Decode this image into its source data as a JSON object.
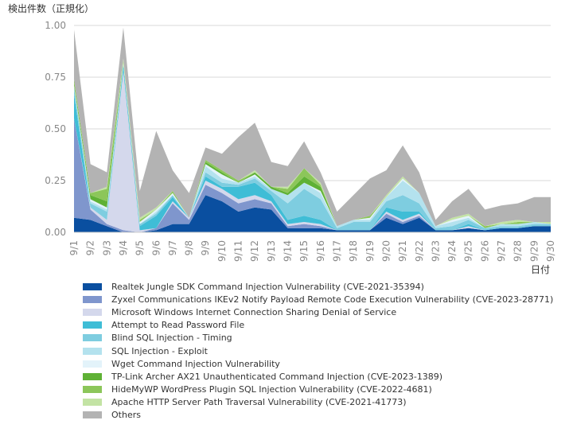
{
  "chart_data": {
    "type": "area",
    "stacked": true,
    "ylabel": "検出件数（正規化）",
    "xlabel": "日付",
    "ylim": [
      0,
      1.0
    ],
    "yticks": [
      "0.00",
      "0.25",
      "0.50",
      "0.75",
      "1.00"
    ],
    "grid": "horizontal",
    "legend_position": "bottom",
    "categories": [
      "9/1",
      "9/2",
      "9/3",
      "9/4",
      "9/5",
      "9/6",
      "9/7",
      "9/8",
      "9/9",
      "9/10",
      "9/11",
      "9/12",
      "9/13",
      "9/14",
      "9/15",
      "9/16",
      "9/17",
      "9/18",
      "9/19",
      "9/20",
      "9/21",
      "9/22",
      "9/23",
      "9/24",
      "9/25",
      "9/26",
      "9/27",
      "9/28",
      "9/29",
      "9/30"
    ],
    "series": [
      {
        "name": "Realtek Jungle SDK Command Injection Vulnerability (CVE-2021-35394)",
        "color": "#0a4fa0",
        "values": [
          0.07,
          0.06,
          0.03,
          0.0,
          0.0,
          0.01,
          0.04,
          0.04,
          0.18,
          0.15,
          0.1,
          0.12,
          0.11,
          0.02,
          0.02,
          0.02,
          0.01,
          0.01,
          0.01,
          0.07,
          0.04,
          0.07,
          0.01,
          0.01,
          0.02,
          0.01,
          0.02,
          0.02,
          0.03,
          0.03
        ]
      },
      {
        "name": "Zyxel Communications IKEv2 Notify Payload Remote Code Execution Vulnerability (CVE-2023-28771)",
        "color": "#7f96cd",
        "values": [
          0.48,
          0.05,
          0.01,
          0.01,
          0.0,
          0.01,
          0.1,
          0.02,
          0.05,
          0.04,
          0.04,
          0.04,
          0.03,
          0.01,
          0.02,
          0.01,
          0.0,
          0.0,
          0.0,
          0.02,
          0.01,
          0.01,
          0.0,
          0.0,
          0.0,
          0.0,
          0.0,
          0.0,
          0.0,
          0.0
        ]
      },
      {
        "name": "Microsoft Windows Internet Connection Sharing Denial of Service",
        "color": "#d4d8ec",
        "values": [
          0.0,
          0.01,
          0.02,
          0.77,
          0.01,
          0.0,
          0.01,
          0.01,
          0.02,
          0.02,
          0.02,
          0.02,
          0.01,
          0.01,
          0.01,
          0.01,
          0.0,
          0.0,
          0.0,
          0.01,
          0.01,
          0.01,
          0.0,
          0.0,
          0.01,
          0.0,
          0.0,
          0.0,
          0.0,
          0.0
        ]
      },
      {
        "name": "Attempt to Read Password File",
        "color": "#3fbdd6",
        "values": [
          0.12,
          0.0,
          0.0,
          0.03,
          0.02,
          0.06,
          0.02,
          0.0,
          0.02,
          0.01,
          0.06,
          0.06,
          0.03,
          0.02,
          0.03,
          0.02,
          0.0,
          0.0,
          0.0,
          0.02,
          0.04,
          0.01,
          0.0,
          0.0,
          0.01,
          0.0,
          0.0,
          0.0,
          0.0,
          0.0
        ]
      },
      {
        "name": "Blind SQL Injection - Timing",
        "color": "#7ecde0",
        "values": [
          0.03,
          0.02,
          0.04,
          0.0,
          0.01,
          0.01,
          0.01,
          0.0,
          0.02,
          0.02,
          0.01,
          0.02,
          0.02,
          0.08,
          0.13,
          0.1,
          0.01,
          0.04,
          0.04,
          0.03,
          0.08,
          0.04,
          0.01,
          0.02,
          0.02,
          0.01,
          0.01,
          0.01,
          0.01,
          0.01
        ]
      },
      {
        "name": "SQL Injection - Exploit",
        "color": "#b4e2ee",
        "values": [
          0.0,
          0.01,
          0.01,
          0.0,
          0.0,
          0.01,
          0.0,
          0.0,
          0.03,
          0.02,
          0.01,
          0.01,
          0.01,
          0.04,
          0.03,
          0.03,
          0.01,
          0.01,
          0.01,
          0.02,
          0.07,
          0.05,
          0.01,
          0.02,
          0.01,
          0.0,
          0.01,
          0.01,
          0.01,
          0.0
        ]
      },
      {
        "name": "Wget Command Injection Vulnerability",
        "color": "#e3f3fa",
        "values": [
          0.01,
          0.01,
          0.01,
          0.01,
          0.01,
          0.01,
          0.01,
          0.0,
          0.01,
          0.02,
          0.0,
          0.01,
          0.0,
          0.0,
          0.0,
          0.01,
          0.0,
          0.0,
          0.01,
          0.0,
          0.01,
          0.0,
          0.0,
          0.01,
          0.01,
          0.0,
          0.0,
          0.0,
          0.0,
          0.0
        ]
      },
      {
        "name": "TP-Link Archer AX21 Unauthenticated Command Injection (CVE-2023-1389)",
        "color": "#5fb135",
        "values": [
          0.01,
          0.02,
          0.03,
          0.0,
          0.0,
          0.0,
          0.0,
          0.0,
          0.01,
          0.01,
          0.0,
          0.01,
          0.01,
          0.01,
          0.03,
          0.02,
          0.0,
          0.0,
          0.0,
          0.0,
          0.0,
          0.0,
          0.0,
          0.0,
          0.0,
          0.0,
          0.0,
          0.0,
          0.0,
          0.0
        ]
      },
      {
        "name": "HideMyWP WordPress Plugin SQL Injection Vulnerability (CVE-2022-4681)",
        "color": "#8cc65a",
        "values": [
          0.02,
          0.01,
          0.06,
          0.01,
          0.01,
          0.0,
          0.01,
          0.0,
          0.01,
          0.01,
          0.01,
          0.0,
          0.0,
          0.02,
          0.04,
          0.01,
          0.0,
          0.0,
          0.01,
          0.0,
          0.0,
          0.0,
          0.0,
          0.0,
          0.0,
          0.01,
          0.0,
          0.01,
          0.0,
          0.0
        ]
      },
      {
        "name": "Apache HTTP Server Path Traversal Vulnerability (CVE-2021-41773)",
        "color": "#c3e3a4",
        "values": [
          0.0,
          0.0,
          0.01,
          0.01,
          0.01,
          0.01,
          0.0,
          0.0,
          0.0,
          0.0,
          0.0,
          0.01,
          0.0,
          0.01,
          0.0,
          0.01,
          0.0,
          0.0,
          0.0,
          0.01,
          0.01,
          0.0,
          0.0,
          0.01,
          0.01,
          0.0,
          0.01,
          0.01,
          0.0,
          0.01
        ]
      },
      {
        "name": "Others",
        "color": "#b3b3b3",
        "values": [
          0.24,
          0.14,
          0.07,
          0.15,
          0.13,
          0.37,
          0.1,
          0.12,
          0.06,
          0.08,
          0.21,
          0.23,
          0.12,
          0.1,
          0.13,
          0.05,
          0.07,
          0.12,
          0.18,
          0.12,
          0.15,
          0.1,
          0.03,
          0.08,
          0.12,
          0.08,
          0.08,
          0.08,
          0.12,
          0.12
        ]
      }
    ]
  }
}
